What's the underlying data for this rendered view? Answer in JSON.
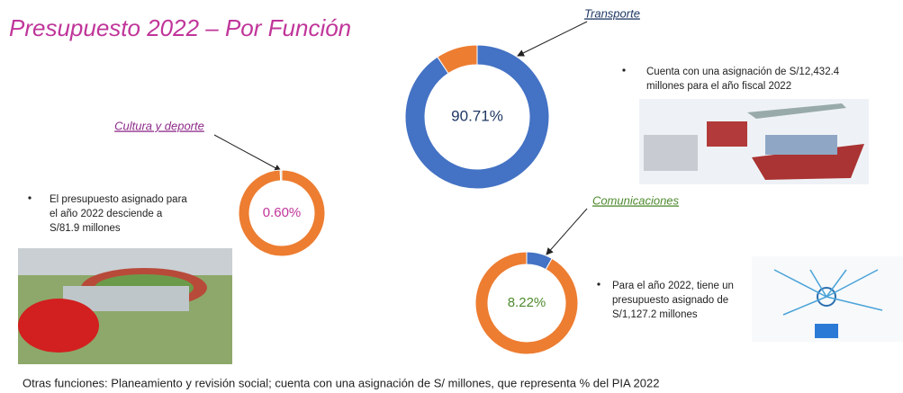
{
  "title": "Presupuesto 2022 – Por Función",
  "chart_data": [
    {
      "type": "pie",
      "title": "Transporte",
      "values": [
        90.71,
        9.29
      ],
      "value_labels": [
        "90.71%",
        null
      ],
      "colors": [
        "#4472c4",
        "#ed7d31"
      ],
      "label_color": "#1f3864",
      "title_color": "#1f3864",
      "annotation": [
        "Cuenta con una asignación de S/12,432.4",
        "millones para el año fiscal 2022"
      ]
    },
    {
      "type": "pie",
      "title": "Cultura y deporte",
      "values": [
        99.4,
        0.6
      ],
      "value_labels": [
        null,
        "0.60%"
      ],
      "colors": [
        "#ed7d31",
        "#d9d9d9"
      ],
      "label_color": "#c0359a",
      "title_color": "#8e2b8a",
      "annotation": [
        "El presupuesto asignado para",
        "el año 2022 desciende a",
        "S/81.9 millones"
      ]
    },
    {
      "type": "pie",
      "title": "Comunicaciones",
      "values": [
        8.22,
        91.78
      ],
      "value_labels": [
        "8.22%",
        null
      ],
      "colors": [
        "#4472c4",
        "#ed7d31"
      ],
      "label_color": "#4e8a2e",
      "title_color": "#4e8a2e",
      "annotation": [
        "Para el año 2022, tiene un",
        "presupuesto asignado de",
        "S/1,127.2 millones"
      ]
    }
  ],
  "footer": "Otras funciones: Planeamiento y revisión social; cuenta con una asignación de S/ millones, que representa  % del PIA 2022"
}
